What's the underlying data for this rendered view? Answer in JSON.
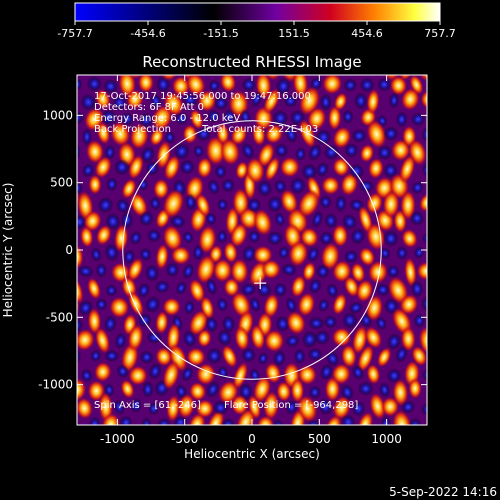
{
  "footer": {
    "date": "5-Sep-2022 14:16"
  },
  "chart_data": {
    "type": "heatmap",
    "title": "Reconstructed RHESSI Image",
    "xlabel": "Heliocentric X (arcsec)",
    "ylabel": "Heliocentric Y (arcsec)",
    "xlim": [
      -1300,
      1300
    ],
    "ylim": [
      -1300,
      1300
    ],
    "xticks": [
      -1000,
      -500,
      0,
      500,
      1000
    ],
    "yticks": [
      -1000,
      -500,
      0,
      500,
      1000
    ],
    "colorbar": {
      "min": -757.7,
      "max": 757.7,
      "ticks": [
        "-757.7",
        "-454.6",
        "-151.5",
        "151.5",
        "454.6",
        "757.7"
      ],
      "tick_values": [
        -757.7,
        -454.6,
        -151.5,
        151.5,
        454.6,
        757.7
      ],
      "stops": [
        "#0000ff",
        "#000000",
        "#7000a0",
        "#d00020",
        "#ff8000",
        "#ffff40",
        "#ffffff"
      ]
    },
    "annotations": {
      "time_range": "17-Oct-2017 19:45:56.000 to 19:47:16.000",
      "detectors": "Detectors: 6F 8F  Att 0",
      "energy": "Energy Range: 6.0 - 12.0 keV",
      "method": "Back Projection",
      "counts": "Total counts: 2.22E+03",
      "spin_axis": "Spin Axis = [61,-246]",
      "flare_position": "Flare Position = [-964,298]"
    },
    "solar_disk": {
      "center": [
        0,
        0
      ],
      "radius": 960
    },
    "center_marker": [
      61,
      -246
    ]
  }
}
